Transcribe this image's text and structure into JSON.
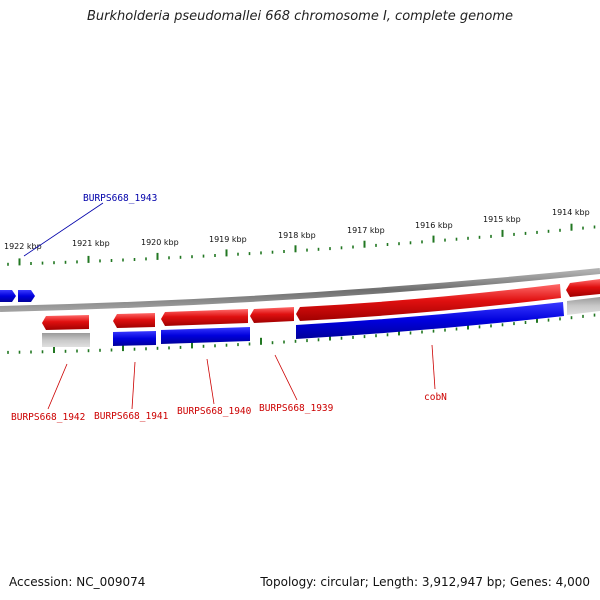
{
  "title": "Burkholderia pseudomallei 668 chromosome I, complete genome",
  "accession": "Accession: NC_009074",
  "summary": "Topology: circular; Length: 3,912,947 bp; Genes: 4,000",
  "colors": {
    "forward_cds": "#e01010",
    "reverse_cds": "#0000dd",
    "gene_gray": "#bdbdbd",
    "backbone": "#8a8a8a",
    "tick": "#227722",
    "label_red": "#cc0000",
    "label_blue": "#0000aa"
  },
  "ruler": {
    "unit": "kbp",
    "labels": [
      "1922 kbp",
      "1921 kbp",
      "1920 kbp",
      "1919 kbp",
      "1918 kbp",
      "1917 kbp",
      "1916 kbp",
      "1915 kbp",
      "1914 kbp"
    ]
  },
  "gene_labels": [
    {
      "id": "g1943",
      "text": "BURPS668_1943",
      "color": "blue"
    },
    {
      "id": "g1942",
      "text": "BURPS668_1942",
      "color": "red"
    },
    {
      "id": "g1941",
      "text": "BURPS668_1941",
      "color": "red"
    },
    {
      "id": "g1940",
      "text": "BURPS668_1940",
      "color": "red"
    },
    {
      "id": "g1939",
      "text": "BURPS668_1939",
      "color": "red"
    },
    {
      "id": "cobN",
      "text": "cobN",
      "color": "red"
    }
  ]
}
